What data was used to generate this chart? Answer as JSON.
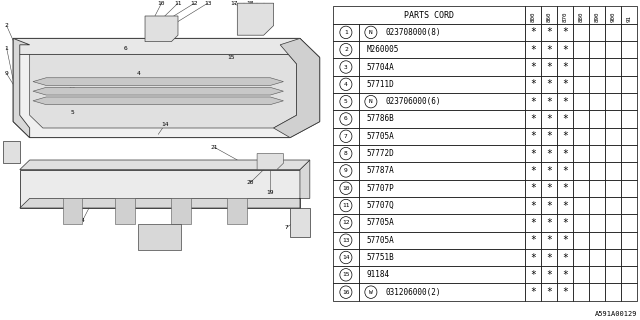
{
  "bg_color": "#ffffff",
  "diagram_label": "A591A00129",
  "col_header": "PARTS CORD",
  "col_years": [
    "800",
    "860",
    "870",
    "880",
    "890",
    "900",
    "91"
  ],
  "rows": [
    {
      "num": 1,
      "part": "023708000(8)",
      "special": "N",
      "stars": [
        1,
        1,
        1,
        0,
        0,
        0,
        0
      ]
    },
    {
      "num": 2,
      "part": "M260005",
      "special": "",
      "stars": [
        1,
        1,
        1,
        0,
        0,
        0,
        0
      ]
    },
    {
      "num": 3,
      "part": "57704A",
      "special": "",
      "stars": [
        1,
        1,
        1,
        0,
        0,
        0,
        0
      ]
    },
    {
      "num": 4,
      "part": "57711D",
      "special": "",
      "stars": [
        1,
        1,
        1,
        0,
        0,
        0,
        0
      ]
    },
    {
      "num": 5,
      "part": "023706000(6)",
      "special": "N",
      "stars": [
        1,
        1,
        1,
        0,
        0,
        0,
        0
      ]
    },
    {
      "num": 6,
      "part": "57786B",
      "special": "",
      "stars": [
        1,
        1,
        1,
        0,
        0,
        0,
        0
      ]
    },
    {
      "num": 7,
      "part": "57705A",
      "special": "",
      "stars": [
        1,
        1,
        1,
        0,
        0,
        0,
        0
      ]
    },
    {
      "num": 8,
      "part": "57772D",
      "special": "",
      "stars": [
        1,
        1,
        1,
        0,
        0,
        0,
        0
      ]
    },
    {
      "num": 9,
      "part": "57787A",
      "special": "",
      "stars": [
        1,
        1,
        1,
        0,
        0,
        0,
        0
      ]
    },
    {
      "num": 10,
      "part": "57707P",
      "special": "",
      "stars": [
        1,
        1,
        1,
        0,
        0,
        0,
        0
      ]
    },
    {
      "num": 11,
      "part": "57707Q",
      "special": "",
      "stars": [
        1,
        1,
        1,
        0,
        0,
        0,
        0
      ]
    },
    {
      "num": 12,
      "part": "57705A",
      "special": "",
      "stars": [
        1,
        1,
        1,
        0,
        0,
        0,
        0
      ]
    },
    {
      "num": 13,
      "part": "57705A",
      "special": "",
      "stars": [
        1,
        1,
        1,
        0,
        0,
        0,
        0
      ]
    },
    {
      "num": 14,
      "part": "57751B",
      "special": "",
      "stars": [
        1,
        1,
        1,
        0,
        0,
        0,
        0
      ]
    },
    {
      "num": 15,
      "part": "91184",
      "special": "",
      "stars": [
        1,
        1,
        1,
        0,
        0,
        0,
        0
      ]
    },
    {
      "num": 16,
      "part": "031206000(2)",
      "special": "W",
      "stars": [
        1,
        1,
        1,
        0,
        0,
        0,
        0
      ]
    }
  ]
}
